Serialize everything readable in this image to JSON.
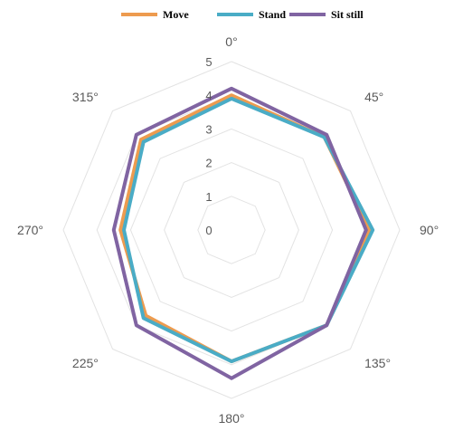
{
  "chart_data": {
    "type": "radar",
    "categories": [
      "0°",
      "45°",
      "90°",
      "135°",
      "180°",
      "225°",
      "270°",
      "315°"
    ],
    "rlim": [
      0,
      5
    ],
    "ticks": [
      "0",
      "1",
      "2",
      "3",
      "4",
      "5"
    ],
    "grid": true,
    "legend_position": "top",
    "series": [
      {
        "name": "Move",
        "color": "#ED9B4F",
        "values": [
          4.0,
          3.9,
          4.1,
          4.0,
          3.9,
          3.6,
          3.3,
          3.8
        ]
      },
      {
        "name": "Stand",
        "color": "#4AACC6",
        "values": [
          3.9,
          3.9,
          4.2,
          4.0,
          3.9,
          3.7,
          3.2,
          3.7
        ]
      },
      {
        "name": "Sit still",
        "color": "#8064A2",
        "values": [
          4.2,
          4.0,
          4.0,
          4.0,
          4.4,
          4.0,
          3.5,
          4.0
        ]
      }
    ]
  }
}
